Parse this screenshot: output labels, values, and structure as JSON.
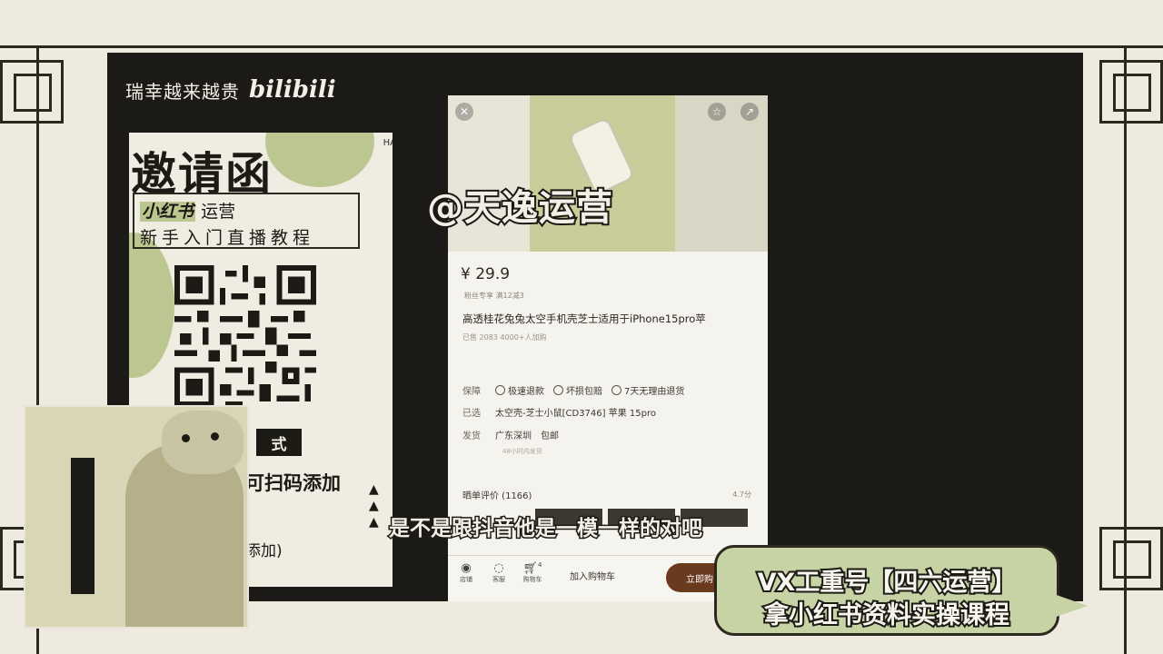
{
  "header": {
    "channel_text": "瑞幸越来越贵",
    "logo_text": "bilibili"
  },
  "poster": {
    "title": "邀请函",
    "corner_text": "HA",
    "subtitle_highlight": "小红书",
    "subtitle_rest": "运营",
    "subtitle_line2": "新手入门直播教程",
    "way_label": "式",
    "scan_text": "可扫码添加",
    "add_text": "添加)"
  },
  "product": {
    "price": "¥ 29.9",
    "coupon": "粉丝专享 满12减3",
    "title": "高透桂花兔兔太空手机壳芝士适用于iPhone15pro苹",
    "sold": "已售 2083      4000+人加购",
    "guarantee_label": "保障",
    "guarantees": [
      "极速退款",
      "坏损包赔",
      "7天无理由退货"
    ],
    "selected_label": "已选",
    "selected_value": "太空壳-芝士小鼠[CD3746] 苹果 15pro",
    "ship_label": "发货",
    "ship_from": "广东深圳",
    "ship_free": "包邮",
    "ship_note": "48小时内发货",
    "reviews": "晒单评价 (1166)",
    "rating": "4.7分",
    "bottom": {
      "store": "店铺",
      "service": "客服",
      "cart_icon_label": "购物车",
      "cart_badge": "4",
      "add_to_cart": "加入购物车",
      "buy_now": "立即购"
    }
  },
  "overlay": {
    "watermark": "@天逸运营",
    "subtitle": "是不是跟抖音他是一模一样的对吧"
  },
  "banner": {
    "line1": "VX工重号【四六运营】",
    "line2": "拿小红书资料实操课程"
  },
  "colors": {
    "accent_green": "#c7d3a4",
    "dark": "#1b1a15",
    "buy_button": "#6a3a1e"
  }
}
